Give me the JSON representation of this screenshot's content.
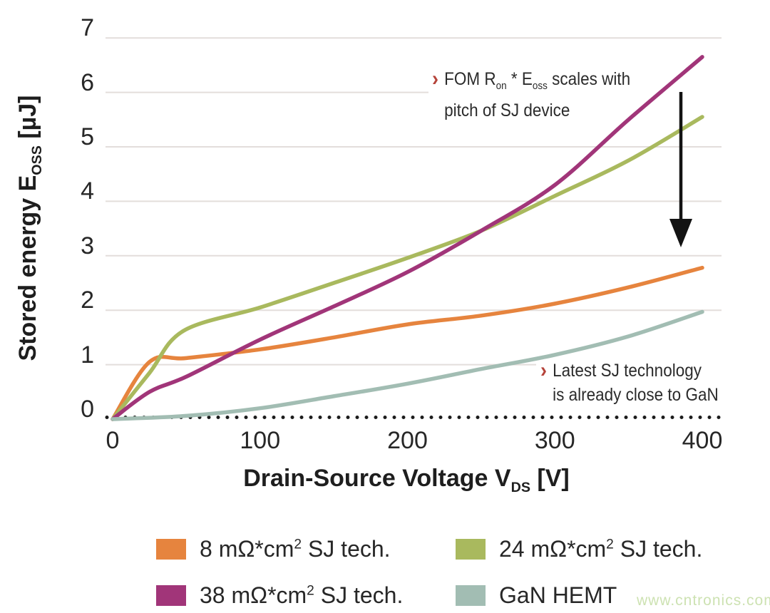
{
  "chart_data": {
    "type": "line",
    "title": "",
    "xlabel": {
      "prefix": "Drain-Source Voltage V",
      "sub": "DS",
      "suffix": " [V]"
    },
    "ylabel": {
      "prefix": "Stored energy E",
      "sub": "OSS",
      "suffix": " [µJ]"
    },
    "xlim": [
      0,
      400
    ],
    "ylim": [
      0,
      7
    ],
    "xticks": [
      0,
      100,
      200,
      300,
      400
    ],
    "yticks": [
      0,
      1,
      2,
      3,
      4,
      5,
      6,
      7
    ],
    "grid": true,
    "zero_line": "dotted",
    "legend_position": "bottom",
    "series": [
      {
        "name": "8 mΩ*cm² SJ tech.",
        "color": "#e6843e",
        "points": [
          [
            0,
            0
          ],
          [
            25,
            1.05
          ],
          [
            50,
            1.12
          ],
          [
            100,
            1.28
          ],
          [
            150,
            1.5
          ],
          [
            200,
            1.74
          ],
          [
            250,
            1.9
          ],
          [
            300,
            2.12
          ],
          [
            350,
            2.42
          ],
          [
            400,
            2.78
          ]
        ]
      },
      {
        "name": "24 mΩ*cm² SJ tech.",
        "color": "#a9b95e",
        "points": [
          [
            0,
            0
          ],
          [
            25,
            0.85
          ],
          [
            48,
            1.62
          ],
          [
            100,
            2.05
          ],
          [
            150,
            2.5
          ],
          [
            200,
            2.96
          ],
          [
            250,
            3.46
          ],
          [
            300,
            4.1
          ],
          [
            350,
            4.75
          ],
          [
            400,
            5.55
          ]
        ]
      },
      {
        "name": "38 mΩ*cm² SJ tech.",
        "color": "#a13579",
        "points": [
          [
            0,
            0
          ],
          [
            25,
            0.5
          ],
          [
            50,
            0.78
          ],
          [
            100,
            1.46
          ],
          [
            150,
            2.07
          ],
          [
            200,
            2.7
          ],
          [
            250,
            3.46
          ],
          [
            300,
            4.3
          ],
          [
            350,
            5.5
          ],
          [
            400,
            6.65
          ]
        ]
      },
      {
        "name": "GaN HEMT",
        "color": "#a2bdb3",
        "points": [
          [
            0,
            0
          ],
          [
            50,
            0.06
          ],
          [
            100,
            0.2
          ],
          [
            150,
            0.42
          ],
          [
            200,
            0.65
          ],
          [
            250,
            0.92
          ],
          [
            300,
            1.18
          ],
          [
            350,
            1.52
          ],
          [
            400,
            1.97
          ]
        ]
      }
    ]
  },
  "annotations": {
    "fom": {
      "chevron": "›",
      "line1_pre": "FOM R",
      "line1_sub1": "on",
      "line1_mid": " * E",
      "line1_sub2": "oss",
      "line1_post": " scales with",
      "line2": "pitch of SJ device"
    },
    "gan": {
      "chevron": "›",
      "line1": "Latest SJ technology",
      "line2": "is already close to GaN"
    }
  },
  "legend": {
    "items": [
      {
        "pre": "8 mΩ*cm",
        "sup": "2",
        "post": " SJ tech.",
        "color": "#e6843e"
      },
      {
        "pre": "24 mΩ*cm",
        "sup": "2",
        "post": " SJ tech.",
        "color": "#a9b95e"
      },
      {
        "pre": "38 mΩ*cm",
        "sup": "2",
        "post": " SJ tech.",
        "color": "#a13579"
      },
      {
        "pre": "GaN HEMT",
        "sup": "",
        "post": "",
        "color": "#a2bdb3"
      }
    ]
  },
  "colors": {
    "grid": "#e3dedb",
    "dotted_line": "#1c1c1c",
    "arrow": "#131313",
    "chevron": "#b5433a",
    "text": "#272727",
    "watermark": "#cde2b2"
  },
  "watermark": "www.cntronics.com"
}
